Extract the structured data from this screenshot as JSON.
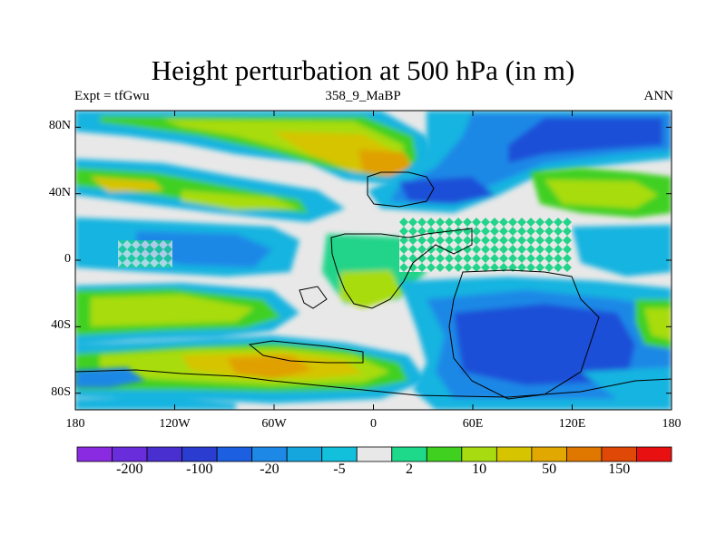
{
  "title": "Height perturbation at 500 hPa (in m)",
  "subtitle_left": "Expt = tfGwu",
  "subtitle_center": "358_9_MaBP",
  "subtitle_right": "ANN",
  "lat_ticks": [
    {
      "label": "80N",
      "value": 80
    },
    {
      "label": "40N",
      "value": 40
    },
    {
      "label": "0",
      "value": 0
    },
    {
      "label": "40S",
      "value": -40
    },
    {
      "label": "80S",
      "value": -80
    }
  ],
  "lon_ticks": [
    {
      "label": "180",
      "value": -180
    },
    {
      "label": "120W",
      "value": -120
    },
    {
      "label": "60W",
      "value": -60
    },
    {
      "label": "0",
      "value": 0
    },
    {
      "label": "60E",
      "value": 60
    },
    {
      "label": "120E",
      "value": 120
    },
    {
      "label": "180",
      "value": 180
    }
  ],
  "colorbar": {
    "colors": [
      "#8a2be2",
      "#6a2ddb",
      "#4a2fd0",
      "#2b3cd0",
      "#1c5fe0",
      "#1e88e6",
      "#16a6de",
      "#12c0dc",
      "#e8e8e8",
      "#1ed98a",
      "#40d020",
      "#a8dc10",
      "#d6c400",
      "#e0a800",
      "#e07800",
      "#e04808",
      "#e81010"
    ],
    "labels": [
      "-200",
      "-100",
      "-20",
      "-5",
      "2",
      "10",
      "50",
      "150"
    ]
  },
  "colors": {
    "deep_blue": "#1c4fd8",
    "blue": "#1e88e6",
    "cyan": "#16b4e0",
    "neutral": "#e8e8e8",
    "green": "#22d48a",
    "lime": "#a8dc10",
    "yellow": "#d6c400",
    "orange": "#e0a000",
    "dark_orange": "#e07800"
  }
}
